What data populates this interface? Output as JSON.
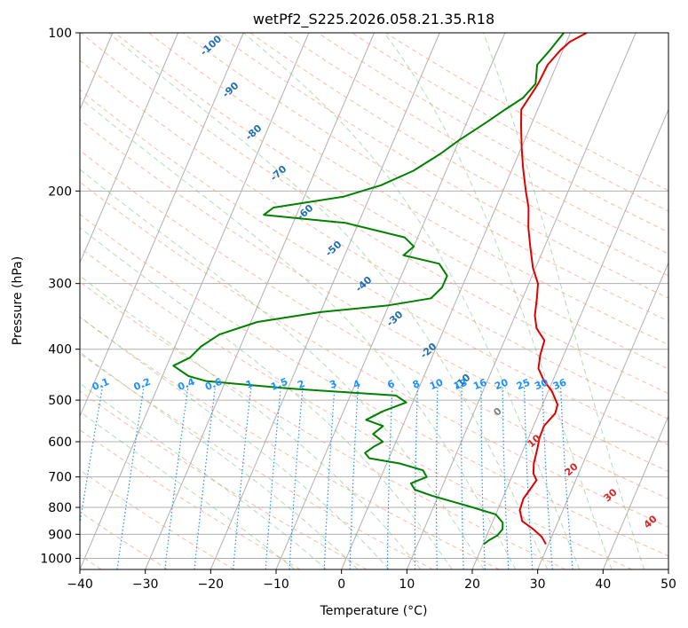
{
  "chart_data": {
    "type": "line",
    "title": "wetPf2_S225.2026.058.21.35.R18",
    "xlabel": "Temperature (°C)",
    "ylabel": "Pressure (hPa)",
    "xlim": [
      -40,
      50
    ],
    "ylim": [
      1050,
      100
    ],
    "y_scale": "log",
    "grid": true,
    "x_ticks": [
      -40,
      -30,
      -20,
      -10,
      0,
      10,
      20,
      30,
      40,
      50
    ],
    "y_ticks": [
      100,
      200,
      300,
      400,
      500,
      600,
      700,
      800,
      900,
      1000
    ],
    "skew_reference": [
      -40,
      1050,
      -5,
      100
    ],
    "series": [
      {
        "color": "#e00000",
        "points": [
          [
            29.6,
            940
          ],
          [
            28.5,
            910
          ],
          [
            26.7,
            880
          ],
          [
            24.5,
            850
          ],
          [
            23.4,
            810
          ],
          [
            23.2,
            770
          ],
          [
            23.6,
            740
          ],
          [
            24.0,
            710
          ],
          [
            23.1,
            690
          ],
          [
            22.5,
            660
          ],
          [
            22.1,
            620
          ],
          [
            21.7,
            590
          ],
          [
            21.6,
            560
          ],
          [
            22.5,
            530
          ],
          [
            22.3,
            510
          ],
          [
            20.5,
            480
          ],
          [
            18.7,
            460
          ],
          [
            17.0,
            435
          ],
          [
            16.4,
            410
          ],
          [
            16.1,
            385
          ],
          [
            14.1,
            365
          ],
          [
            13.0,
            345
          ],
          [
            12.2,
            320
          ],
          [
            11.4,
            300
          ],
          [
            9.6,
            280
          ],
          [
            7.8,
            255
          ],
          [
            6.3,
            235
          ],
          [
            5.0,
            215
          ],
          [
            3.5,
            200
          ],
          [
            1.5,
            180
          ],
          [
            0.0,
            165
          ],
          [
            -1.5,
            150
          ],
          [
            -2.5,
            140
          ],
          [
            -1.6,
            125
          ],
          [
            -1.4,
            115
          ],
          [
            -0.4,
            108
          ],
          [
            0.5,
            104
          ],
          [
            2.5,
            100
          ]
        ]
      },
      {
        "color": "#008000",
        "points": [
          [
            20.1,
            940
          ],
          [
            20.6,
            925
          ],
          [
            21.6,
            905
          ],
          [
            22.0,
            880
          ],
          [
            21.6,
            855
          ],
          [
            20.0,
            825
          ],
          [
            16.0,
            800
          ],
          [
            9.0,
            760
          ],
          [
            6.0,
            740
          ],
          [
            5.0,
            720
          ],
          [
            7.0,
            700
          ],
          [
            6.0,
            680
          ],
          [
            2.0,
            660
          ],
          [
            -3.0,
            645
          ],
          [
            -4.0,
            630
          ],
          [
            -3.0,
            612
          ],
          [
            -2.0,
            600
          ],
          [
            -4.0,
            580
          ],
          [
            -3.0,
            560
          ],
          [
            -6.0,
            545
          ],
          [
            -4.0,
            525
          ],
          [
            -1.0,
            505
          ],
          [
            -3.0,
            490
          ],
          [
            -20.0,
            475
          ],
          [
            -33.0,
            460
          ],
          [
            -36.0,
            450
          ],
          [
            -39.0,
            430
          ],
          [
            -37.0,
            415
          ],
          [
            -36.0,
            395
          ],
          [
            -34.0,
            375
          ],
          [
            -29.0,
            355
          ],
          [
            -20.0,
            340
          ],
          [
            -10.0,
            330
          ],
          [
            -4.0,
            320
          ],
          [
            -3.0,
            305
          ],
          [
            -3.0,
            290
          ],
          [
            -5.0,
            275
          ],
          [
            -11.0,
            265
          ],
          [
            -10.0,
            255
          ],
          [
            -12.0,
            245
          ],
          [
            -22.0,
            230
          ],
          [
            -35.0,
            222
          ],
          [
            -34.0,
            215
          ],
          [
            -24.0,
            205
          ],
          [
            -19.0,
            195
          ],
          [
            -15.0,
            183
          ],
          [
            -12.0,
            170
          ],
          [
            -10.0,
            160
          ],
          [
            -7.0,
            148
          ],
          [
            -5.0,
            140
          ],
          [
            -3.0,
            133
          ],
          [
            -2.0,
            125
          ],
          [
            -3.0,
            115
          ],
          [
            -2.0,
            108
          ],
          [
            -1.0,
            100
          ]
        ]
      }
    ],
    "mixing_ratio_lines": {
      "values": [
        0.1,
        0.2,
        0.4,
        0.6,
        1,
        1.5,
        2,
        3,
        4,
        6,
        8,
        10,
        13,
        16,
        20,
        25,
        30,
        36
      ],
      "labels": [
        "0.1",
        "0.2",
        "0.4",
        "0.6",
        "1",
        "1.5",
        "2",
        "3",
        "4",
        "6",
        "8",
        "10",
        "13",
        "16",
        "20",
        "25",
        "30",
        "36"
      ],
      "color": "#1e90ff"
    },
    "dry_adiabat_labels": [
      "-100",
      "-90",
      "-80",
      "-70",
      "-60",
      "-50",
      "-40",
      "-30",
      "-20",
      "-10",
      "0"
    ],
    "moist_adiabat_labels": [
      "10",
      "20",
      "30",
      "40"
    ]
  }
}
